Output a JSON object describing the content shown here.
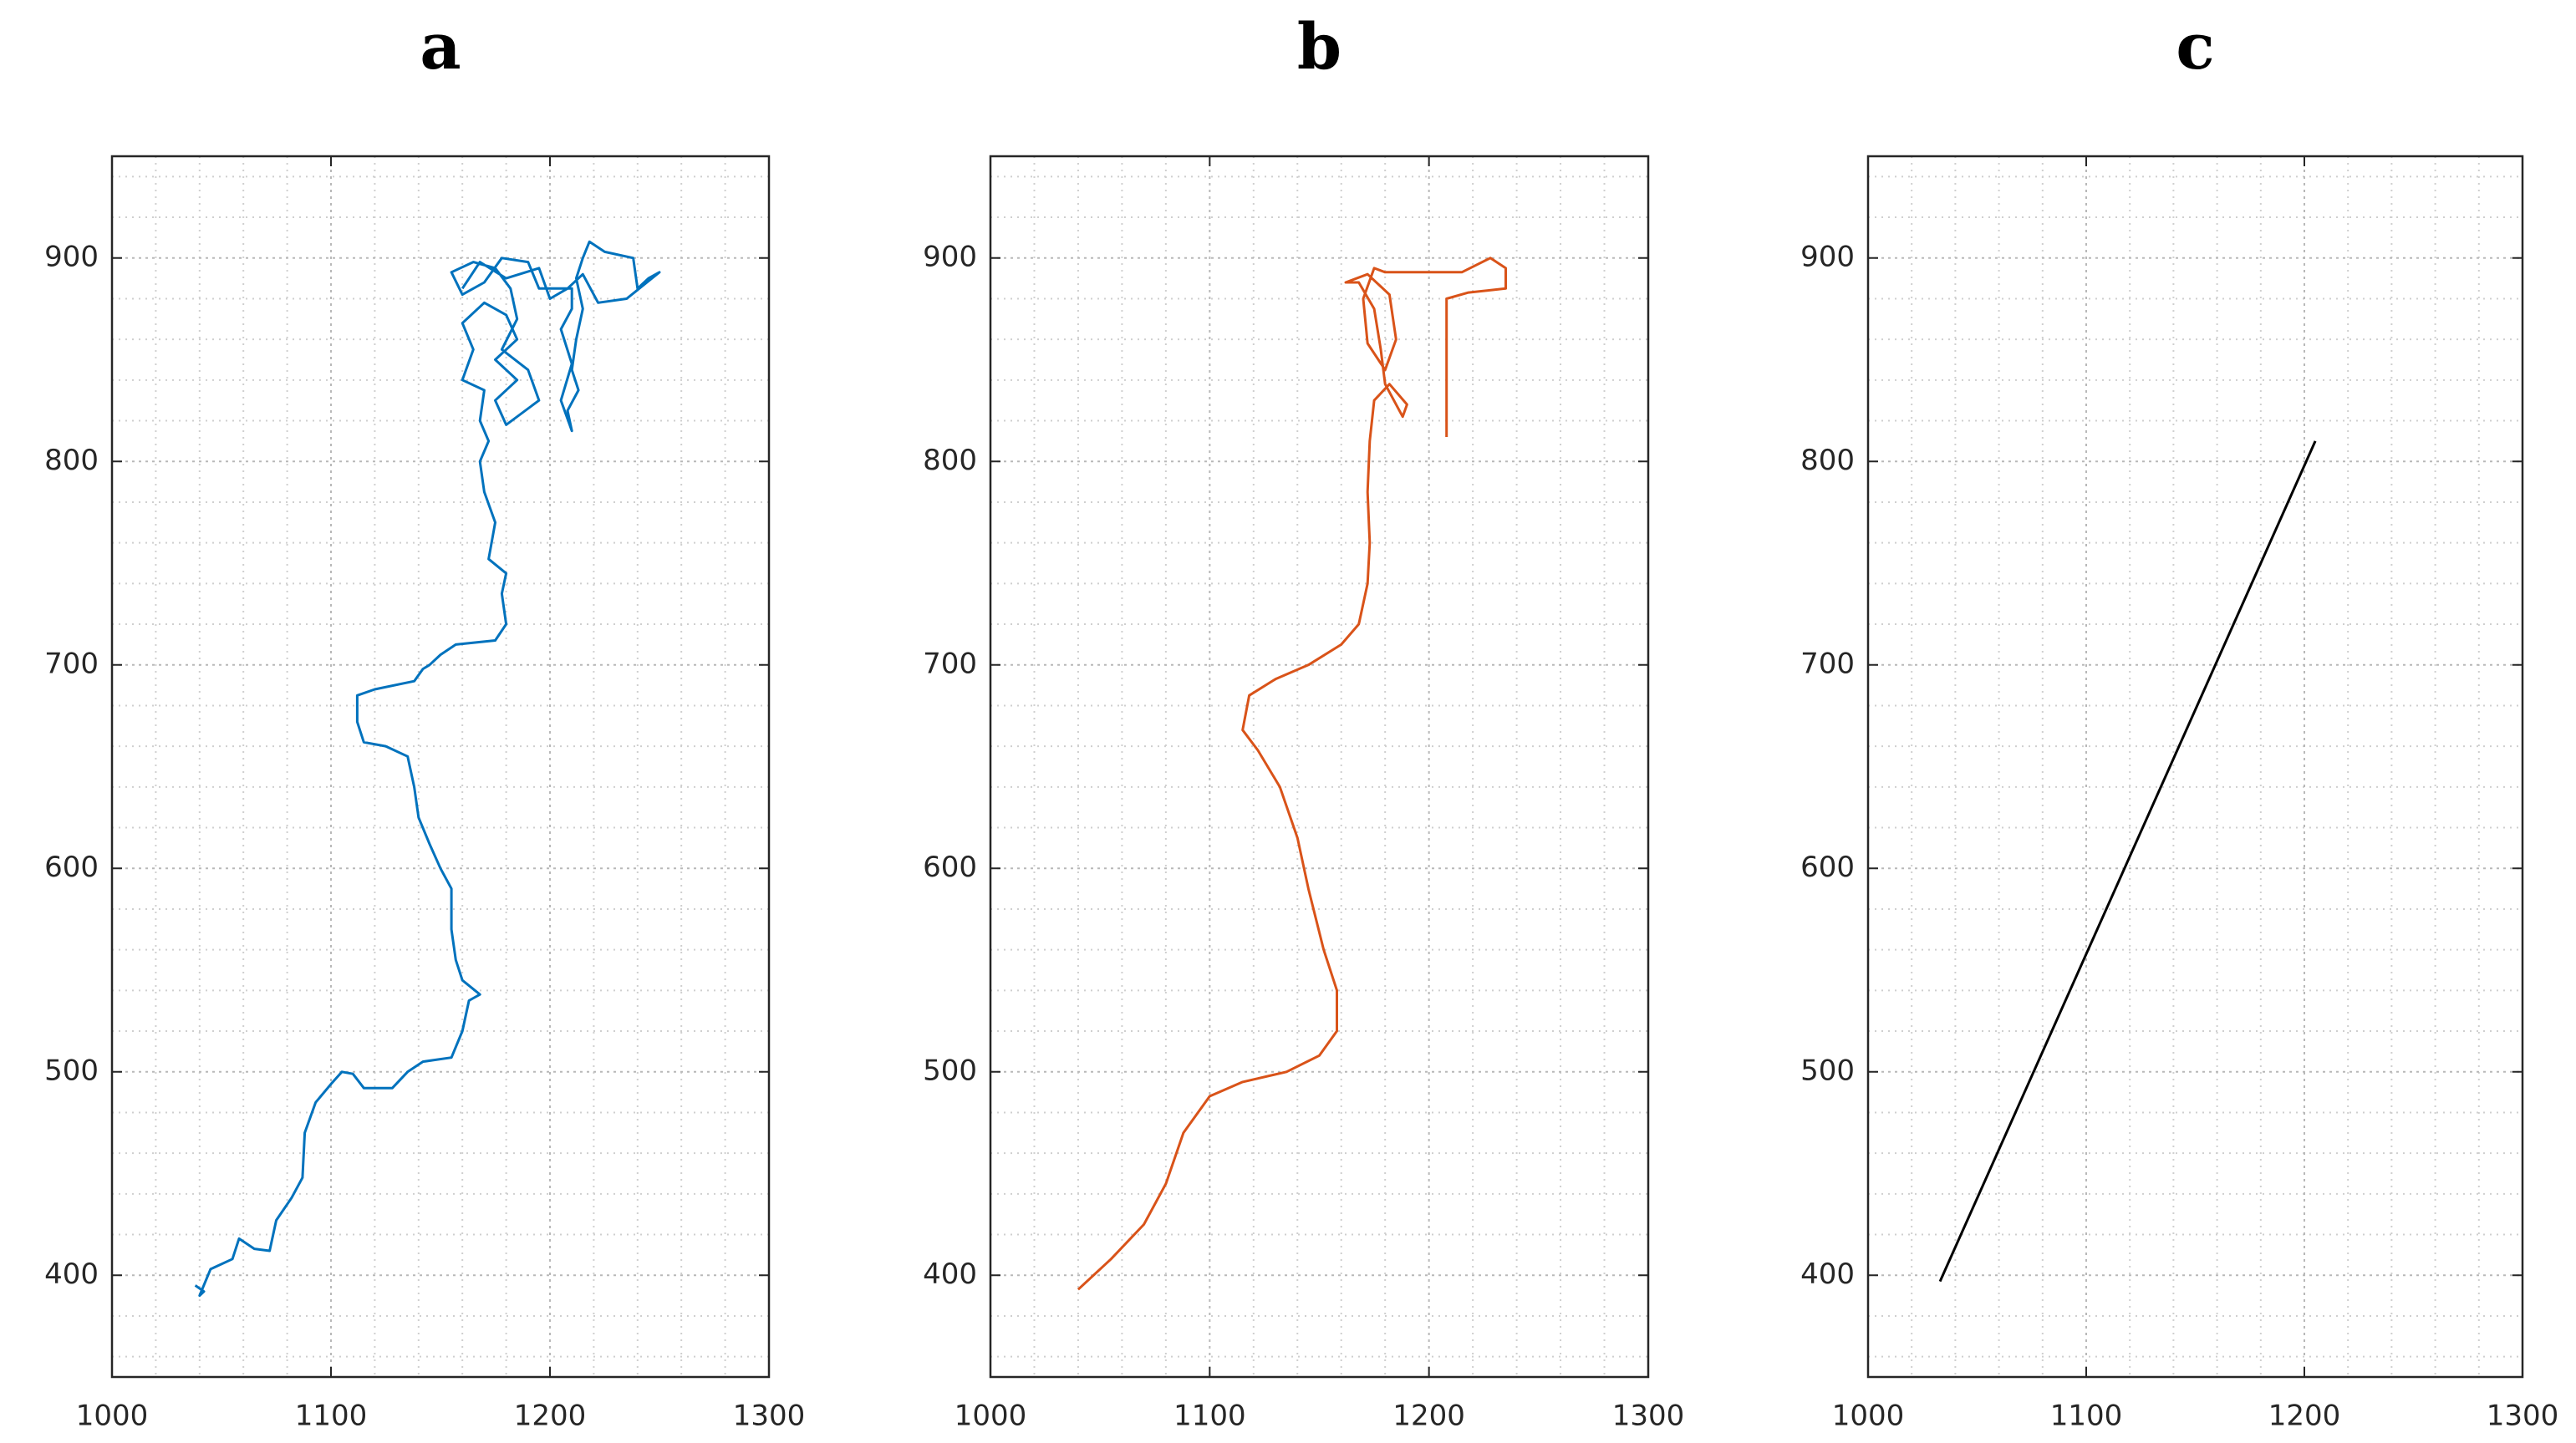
{
  "chart_data": [
    {
      "type": "line",
      "title": "a",
      "color": "#0072bd",
      "x": [
        1038,
        1042,
        1040,
        1045,
        1055,
        1058,
        1065,
        1072,
        1075,
        1082,
        1087,
        1088,
        1093,
        1100,
        1105,
        1110,
        1115,
        1122,
        1128,
        1135,
        1142,
        1155,
        1160,
        1163,
        1168,
        1160,
        1157,
        1155,
        1155,
        1150,
        1145,
        1140,
        1138,
        1135,
        1125,
        1115,
        1112,
        1112,
        1120,
        1138,
        1142,
        1145,
        1150,
        1157,
        1175,
        1180,
        1178,
        1180,
        1172,
        1175,
        1170,
        1168,
        1172,
        1168,
        1170,
        1160,
        1165,
        1160,
        1170,
        1180,
        1185,
        1175,
        1185,
        1175,
        1180,
        1195,
        1190,
        1178,
        1185,
        1182,
        1175,
        1165,
        1155,
        1160,
        1170,
        1178,
        1190,
        1195,
        1210,
        1210,
        1205,
        1210,
        1205,
        1210,
        1208,
        1213,
        1210,
        1212,
        1215,
        1212,
        1215,
        1218,
        1225,
        1238,
        1240,
        1245,
        1250,
        1235,
        1222,
        1215,
        1208,
        1200,
        1195,
        1180,
        1168,
        1160
      ],
      "values": [
        395,
        392,
        390,
        403,
        408,
        418,
        413,
        412,
        427,
        438,
        448,
        470,
        485,
        494,
        500,
        499,
        492,
        492,
        492,
        500,
        505,
        507,
        520,
        535,
        538,
        545,
        555,
        570,
        590,
        600,
        612,
        625,
        640,
        655,
        660,
        662,
        672,
        685,
        688,
        692,
        698,
        700,
        705,
        710,
        712,
        720,
        735,
        745,
        752,
        770,
        785,
        800,
        810,
        820,
        835,
        840,
        855,
        868,
        878,
        872,
        860,
        850,
        840,
        830,
        818,
        830,
        845,
        855,
        870,
        885,
        895,
        898,
        893,
        882,
        888,
        900,
        898,
        885,
        885,
        875,
        865,
        848,
        830,
        815,
        825,
        835,
        845,
        860,
        875,
        890,
        900,
        908,
        903,
        900,
        885,
        890,
        893,
        880,
        878,
        892,
        885,
        880,
        895,
        890,
        898,
        885
      ],
      "xlim": [
        1000,
        1300
      ],
      "xticks": [
        1000,
        1100,
        1200,
        1300
      ],
      "ylim": [
        350,
        950
      ],
      "yticks": [
        400,
        500,
        600,
        700,
        800,
        900
      ],
      "grid": true,
      "minor_grid": true
    },
    {
      "type": "line",
      "title": "b",
      "color": "#d95319",
      "x": [
        1040,
        1055,
        1070,
        1080,
        1088,
        1100,
        1115,
        1135,
        1150,
        1158,
        1158,
        1152,
        1145,
        1140,
        1132,
        1122,
        1115,
        1118,
        1130,
        1145,
        1160,
        1168,
        1172,
        1173,
        1172,
        1173,
        1175,
        1182,
        1190,
        1188,
        1180,
        1178,
        1175,
        1168,
        1162,
        1172,
        1182,
        1185,
        1180,
        1172,
        1170,
        1175,
        1180,
        1215,
        1228,
        1235,
        1235,
        1218,
        1208,
        1208,
        1208
      ],
      "values": [
        393,
        408,
        425,
        445,
        470,
        488,
        495,
        500,
        508,
        520,
        540,
        560,
        590,
        615,
        640,
        658,
        668,
        685,
        693,
        700,
        710,
        720,
        740,
        760,
        785,
        810,
        830,
        838,
        828,
        822,
        838,
        855,
        875,
        888,
        888,
        892,
        882,
        860,
        845,
        858,
        880,
        895,
        893,
        893,
        900,
        895,
        885,
        883,
        880,
        850,
        812
      ],
      "xlim": [
        1000,
        1300
      ],
      "xticks": [
        1000,
        1100,
        1200,
        1300
      ],
      "ylim": [
        350,
        950
      ],
      "yticks": [
        400,
        500,
        600,
        700,
        800,
        900
      ],
      "grid": true,
      "minor_grid": true
    },
    {
      "type": "line",
      "title": "c",
      "color": "#000000",
      "x": [
        1033,
        1205
      ],
      "values": [
        397,
        810
      ],
      "xlim": [
        1000,
        1300
      ],
      "xticks": [
        1000,
        1100,
        1200,
        1300
      ],
      "ylim": [
        350,
        950
      ],
      "yticks": [
        400,
        500,
        600,
        700,
        800,
        900
      ],
      "grid": true,
      "minor_grid": true
    }
  ]
}
